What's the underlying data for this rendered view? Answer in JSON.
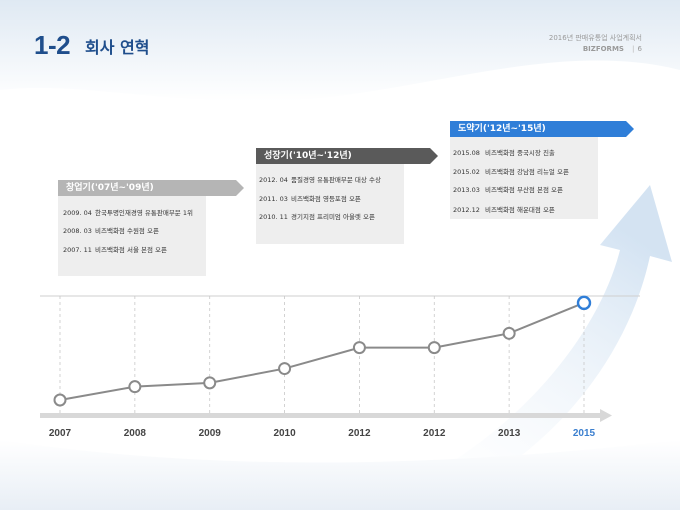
{
  "header": {
    "number": "1-2",
    "title": "회사 연혁",
    "doc_name": "2016년 판매유통업 사업계획서",
    "brand": "BIZFORMS",
    "page": "6"
  },
  "phases": [
    {
      "label": "창업기('07년~'09년)",
      "color": "#b5b5b5",
      "events": [
        {
          "date": "2009. 04",
          "text": "한국투명인재경영 유통판매부문 1위"
        },
        {
          "date": "2008. 03",
          "text": "비즈백화점 수원점 오픈"
        },
        {
          "date": "2007. 11",
          "text": "비즈백화점 서울 본점 오픈"
        }
      ]
    },
    {
      "label": "성장기('10년~'12년)",
      "color": "#5a5a5a",
      "events": [
        {
          "date": "2012. 04",
          "text": "품질경영 유통판매부문 대상 수상"
        },
        {
          "date": "2011. 03",
          "text": "비즈백화점 영등포점 오픈"
        },
        {
          "date": "2010. 11",
          "text": "경기지점 프리미엄 아울렛 오픈"
        }
      ]
    },
    {
      "label": "도약기('12년~'15년)",
      "color": "#2f7ed8",
      "events": [
        {
          "date": "2015.08",
          "text": "비즈백화점 중국시장 진출"
        },
        {
          "date": "2015.02",
          "text": "비즈백화점 강남점 리뉴얼 오픈"
        },
        {
          "date": "2013.03",
          "text": "비즈백화점 부산점 본점 오픈"
        },
        {
          "date": "2012.12",
          "text": "비즈백화점 해운대점 오픈"
        }
      ]
    }
  ],
  "chart_data": {
    "type": "line",
    "categories": [
      "2007",
      "2008",
      "2009",
      "2010",
      "2012",
      "2012",
      "2013",
      "2015"
    ],
    "values": [
      0,
      1.4,
      1.8,
      3.3,
      5.5,
      5.5,
      7.0,
      10.2
    ],
    "ylim": [
      0,
      10.5
    ],
    "xlabel": "",
    "ylabel": "",
    "title": "",
    "grid": "vertical dashed",
    "line_color": "#8a8a8a",
    "highlight_color": "#2f7ed8"
  }
}
